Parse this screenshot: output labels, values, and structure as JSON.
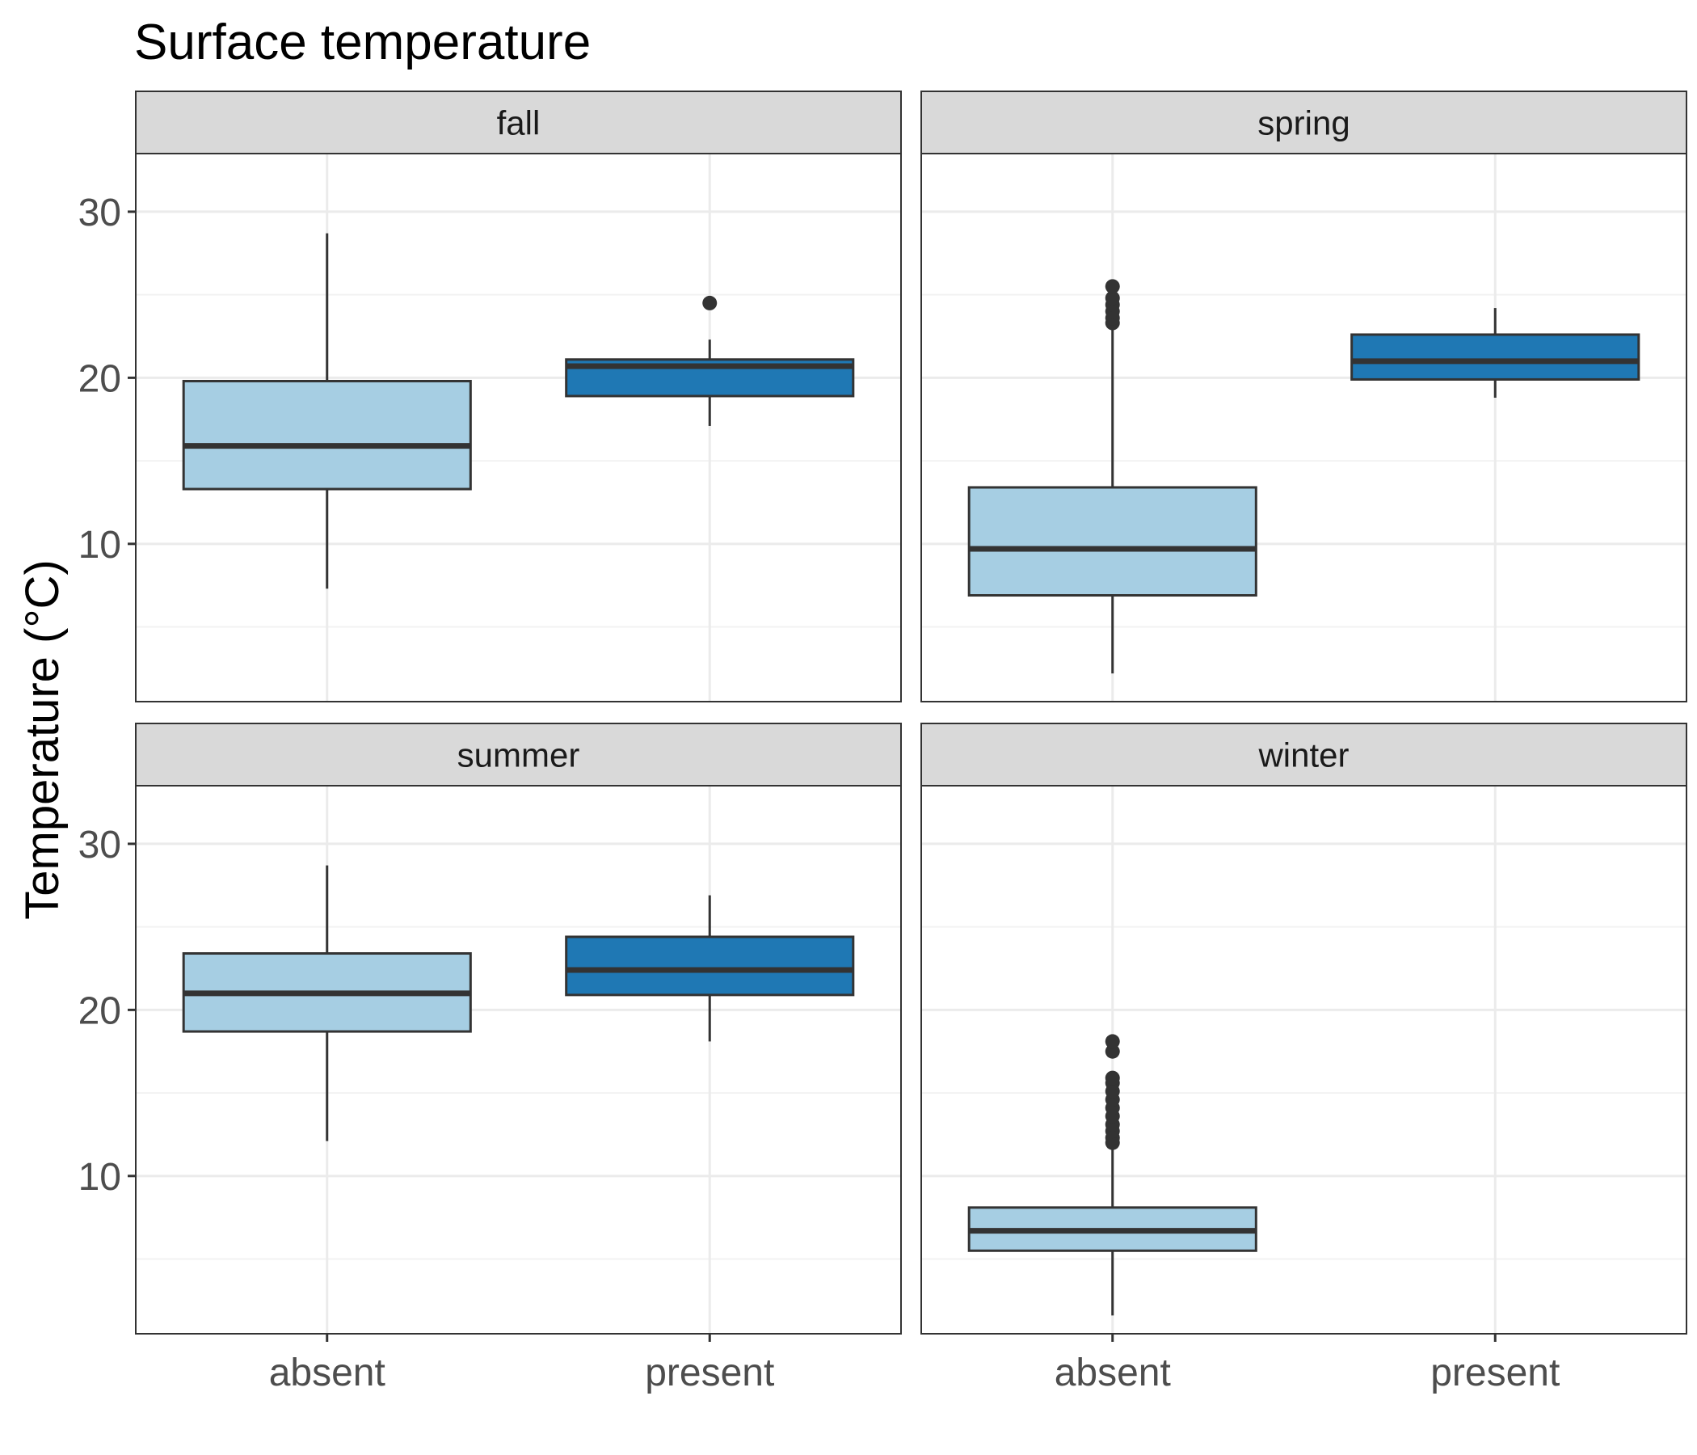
{
  "chart_data": {
    "type": "box",
    "title": "Surface temperature",
    "xlabel": "",
    "ylabel": "Temperature (°C)",
    "categories": [
      "absent",
      "present"
    ],
    "y_ticks": [
      10,
      20,
      30
    ],
    "ylim": [
      0.5,
      33.5
    ],
    "grid": true,
    "legend": "none",
    "colors": {
      "absent": "#a6cee3",
      "present": "#1f78b4",
      "outline": "#333333"
    },
    "panels": [
      {
        "name": "fall",
        "boxes": [
          {
            "category": "absent",
            "min": 7.3,
            "q1": 13.3,
            "median": 15.9,
            "q3": 19.8,
            "max": 28.7,
            "outliers": []
          },
          {
            "category": "present",
            "min": 17.1,
            "q1": 18.9,
            "median": 20.7,
            "q3": 21.1,
            "max": 22.3,
            "outliers": [
              24.5
            ]
          }
        ]
      },
      {
        "name": "spring",
        "boxes": [
          {
            "category": "absent",
            "min": 2.2,
            "q1": 6.9,
            "median": 9.7,
            "q3": 13.4,
            "max": 23.0,
            "outliers": [
              23.3,
              23.6,
              24.0,
              24.4,
              24.8,
              25.5
            ]
          },
          {
            "category": "present",
            "min": 18.8,
            "q1": 19.9,
            "median": 21.0,
            "q3": 22.6,
            "max": 24.2,
            "outliers": []
          }
        ]
      },
      {
        "name": "summer",
        "boxes": [
          {
            "category": "absent",
            "min": 12.1,
            "q1": 18.7,
            "median": 21.0,
            "q3": 23.4,
            "max": 28.7,
            "outliers": []
          },
          {
            "category": "present",
            "min": 18.1,
            "q1": 20.9,
            "median": 22.4,
            "q3": 24.4,
            "max": 26.9,
            "outliers": []
          }
        ]
      },
      {
        "name": "winter",
        "boxes": [
          {
            "category": "absent",
            "min": 1.6,
            "q1": 5.5,
            "median": 6.7,
            "q3": 8.1,
            "max": 11.8,
            "outliers": [
              12.0,
              12.3,
              12.7,
              13.1,
              13.6,
              14.1,
              14.6,
              15.1,
              15.6,
              15.9,
              17.5,
              18.1
            ]
          }
        ]
      }
    ]
  }
}
